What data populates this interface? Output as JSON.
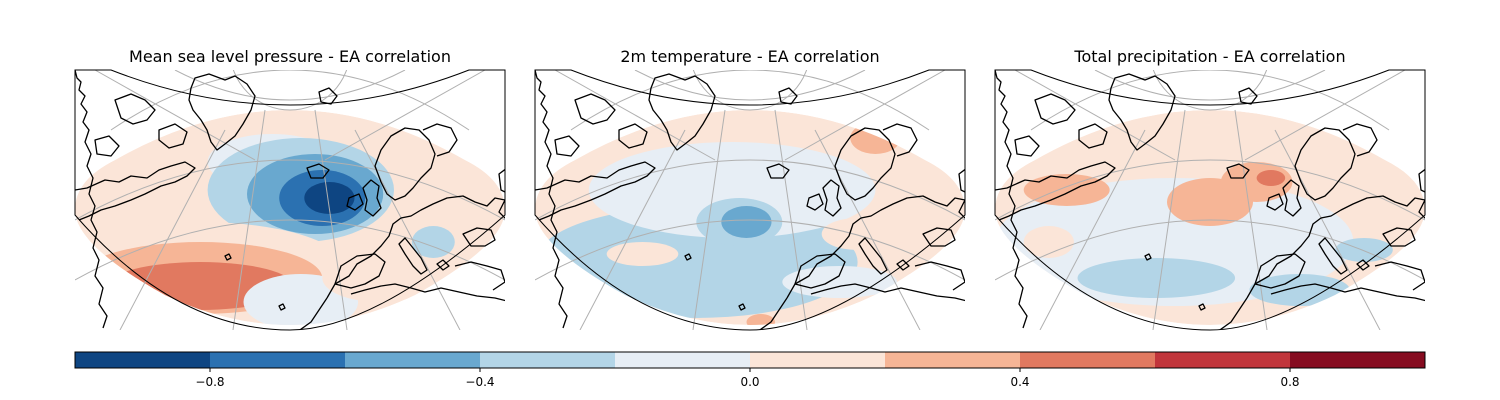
{
  "chart_data": {
    "type": "heatmap",
    "panels": [
      {
        "title": "Mean sea level pressure - EA correlation",
        "blobs": [
          {
            "lon": -38,
            "lat": 53,
            "rx": 40,
            "ry": 10,
            "value": 0.1
          },
          {
            "lon": -20,
            "lat": 62,
            "rx": 18,
            "ry": 7,
            "value": -0.1
          },
          {
            "lon": -12,
            "lat": 55,
            "rx": 26,
            "ry": 13,
            "value": -0.3
          },
          {
            "lon": -8,
            "lat": 54,
            "rx": 19,
            "ry": 10,
            "value": -0.5
          },
          {
            "lon": -6,
            "lat": 53,
            "rx": 12,
            "ry": 7,
            "value": -0.7
          },
          {
            "lon": -4,
            "lat": 53,
            "rx": 7,
            "ry": 4,
            "value": -0.85
          },
          {
            "lon": 25,
            "lat": 42,
            "rx": 6,
            "ry": 4,
            "value": -0.3
          },
          {
            "lon": -40,
            "lat": 36,
            "rx": 40,
            "ry": 11,
            "value": 0.1
          },
          {
            "lon": -40,
            "lat": 33,
            "rx": 34,
            "ry": 9,
            "value": 0.3
          },
          {
            "lon": -40,
            "lat": 31,
            "rx": 26,
            "ry": 6,
            "value": 0.5
          },
          {
            "lon": -12,
            "lat": 27,
            "rx": 16,
            "ry": 7,
            "value": -0.1
          },
          {
            "lon": 10,
            "lat": 33,
            "rx": 16,
            "ry": 6,
            "value": 0.1
          }
        ]
      },
      {
        "title": "2m temperature - EA correlation",
        "blobs": [
          {
            "lon": -30,
            "lat": 37,
            "rx": 45,
            "ry": 14,
            "value": -0.3
          },
          {
            "lon": -20,
            "lat": 55,
            "rx": 40,
            "ry": 12,
            "value": -0.1
          },
          {
            "lon": -18,
            "lat": 47,
            "rx": 12,
            "ry": 6,
            "value": -0.3
          },
          {
            "lon": -16,
            "lat": 47,
            "rx": 7,
            "ry": 4,
            "value": -0.5
          },
          {
            "lon": -42,
            "lat": 39,
            "rx": 5,
            "ry": 2,
            "value": 0.3
          },
          {
            "lon": -45,
            "lat": 39,
            "rx": 10,
            "ry": 3,
            "value": 0.1
          },
          {
            "lon": 15,
            "lat": 44,
            "rx": 10,
            "ry": 4,
            "value": 0.1
          },
          {
            "lon": 30,
            "lat": 38,
            "rx": 10,
            "ry": 4,
            "value": 0.1
          },
          {
            "lon": 20,
            "lat": 68,
            "rx": 7,
            "ry": 4,
            "value": 0.3
          },
          {
            "lon": 10,
            "lat": 32,
            "rx": 16,
            "ry": 4,
            "value": -0.1
          },
          {
            "lon": -12,
            "lat": 22,
            "rx": 4,
            "ry": 2,
            "value": 0.3
          }
        ]
      },
      {
        "title": "Total precipitation - EA correlation",
        "blobs": [
          {
            "lon": -25,
            "lat": 42,
            "rx": 50,
            "ry": 16,
            "value": -0.1
          },
          {
            "lon": -15,
            "lat": 52,
            "rx": 12,
            "ry": 6,
            "value": 0.3
          },
          {
            "lon": -2,
            "lat": 57,
            "rx": 10,
            "ry": 5,
            "value": 0.3
          },
          {
            "lon": 2,
            "lat": 58,
            "rx": 4,
            "ry": 2,
            "value": 0.5
          },
          {
            "lon": 18,
            "lat": 62,
            "rx": 10,
            "ry": 4,
            "value": 0.1
          },
          {
            "lon": -55,
            "lat": 55,
            "rx": 12,
            "ry": 4,
            "value": 0.3
          },
          {
            "lon": -30,
            "lat": 33,
            "rx": 22,
            "ry": 5,
            "value": -0.3
          },
          {
            "lon": 10,
            "lat": 30,
            "rx": 14,
            "ry": 4,
            "value": -0.3
          },
          {
            "lon": 28,
            "lat": 40,
            "rx": 8,
            "ry": 3,
            "value": -0.3
          },
          {
            "lon": -60,
            "lat": 42,
            "rx": 7,
            "ry": 4,
            "value": 0.1
          }
        ]
      }
    ],
    "colorbar": {
      "min": -1.0,
      "max": 1.0,
      "boundaries": [
        -1.0,
        -0.8,
        -0.6,
        -0.4,
        -0.2,
        0.0,
        0.2,
        0.4,
        0.6,
        0.8,
        1.0
      ],
      "colors": [
        "#0e4582",
        "#2b71b1",
        "#69a8cf",
        "#b3d5e7",
        "#e7eef5",
        "#fbe5d8",
        "#f6b596",
        "#e17960",
        "#c1353b",
        "#860c20"
      ],
      "ticks": [
        -0.8,
        -0.4,
        0.0,
        0.4,
        0.8
      ],
      "tick_labels": [
        "−0.8",
        "−0.4",
        "0.0",
        "0.4",
        "0.8"
      ]
    }
  }
}
